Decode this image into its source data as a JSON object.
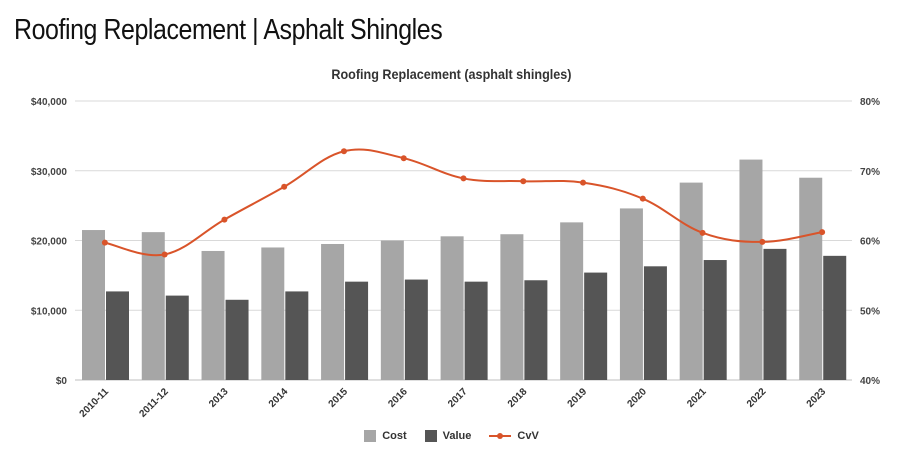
{
  "page_title": "Roofing Replacement | Asphalt Shingles",
  "colors": {
    "cost": "#a6a6a6",
    "value": "#555555",
    "cvv": "#d9542a",
    "grid": "#d9d9d9"
  },
  "chart_data": {
    "type": "bar",
    "title": "Roofing Replacement (asphalt shingles)",
    "categories": [
      "2010-11",
      "2011-12",
      "2013",
      "2014",
      "2015",
      "2016",
      "2017",
      "2018",
      "2019",
      "2020",
      "2021",
      "2022",
      "2023"
    ],
    "series": [
      {
        "name": "Cost",
        "type": "bar",
        "axis": "left",
        "values": [
          21500,
          21200,
          18500,
          19000,
          19500,
          20000,
          20600,
          20900,
          22600,
          24600,
          28300,
          31600,
          29000
        ]
      },
      {
        "name": "Value",
        "type": "bar",
        "axis": "left",
        "values": [
          12700,
          12100,
          11500,
          12700,
          14100,
          14400,
          14100,
          14300,
          15400,
          16300,
          17200,
          18800,
          17800
        ]
      },
      {
        "name": "CvV",
        "type": "line",
        "axis": "right",
        "values": [
          59.7,
          58.0,
          63.0,
          67.7,
          72.8,
          71.8,
          68.9,
          68.5,
          68.3,
          66.0,
          61.1,
          59.8,
          61.2
        ]
      }
    ],
    "left_axis": {
      "min": 0,
      "max": 40000,
      "ticks": [
        "$0",
        "$10,000",
        "$20,000",
        "$30,000",
        "$40,000"
      ]
    },
    "right_axis": {
      "min": 40,
      "max": 80,
      "ticks": [
        "40%",
        "50%",
        "60%",
        "70%",
        "80%"
      ]
    },
    "grid": true,
    "legend_position": "bottom"
  }
}
